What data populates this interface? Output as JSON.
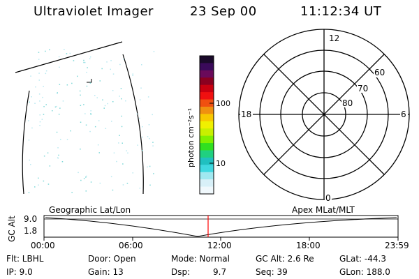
{
  "header": {
    "title": "Ultraviolet Imager",
    "date": "23 Sep 00",
    "time": "11:12:34 UT"
  },
  "colorbar": {
    "label": "photon cm⁻²s⁻¹",
    "ticks": [
      "100",
      "10"
    ],
    "colors": [
      "#1a0a2a",
      "#3a0a5a",
      "#6a0a5a",
      "#8a0020",
      "#c80010",
      "#f01010",
      "#f05010",
      "#f09010",
      "#f8c800",
      "#f0f000",
      "#c8f000",
      "#80f000",
      "#30e020",
      "#20d080",
      "#20c0c0",
      "#40d8e0",
      "#a0e8f0",
      "#d8f0f8",
      "#f0f8fc"
    ]
  },
  "polar_plot": {
    "labels": {
      "top": "12",
      "bottom": "0",
      "left": "18",
      "right": "6",
      "ring_60": "60",
      "ring_70": "70",
      "ring_80": "80"
    }
  },
  "timeline": {
    "ylabel": "GC Alt",
    "y_ticks": [
      "9.0",
      "1.8"
    ],
    "left_label": "Geographic Lat/Lon",
    "right_label": "Apex MLat/MLT",
    "x_ticks": [
      "00:00",
      "06:00",
      "12:00",
      "18:00",
      "23:59"
    ],
    "current_time_color": "#ff0000"
  },
  "status": {
    "filter": "Flt: LBHL",
    "ip": "IP:  9.0",
    "door": "Door: Open",
    "gain": "Gain: 13",
    "mode": "Mode: Normal",
    "dsp_label": "Dsp:",
    "dsp_value": "9.7",
    "gc_alt": "GC Alt: 2.6 Re",
    "seq": "Seq: 39",
    "glat": "GLat: -44.3",
    "glon": "GLon: 188.0"
  }
}
